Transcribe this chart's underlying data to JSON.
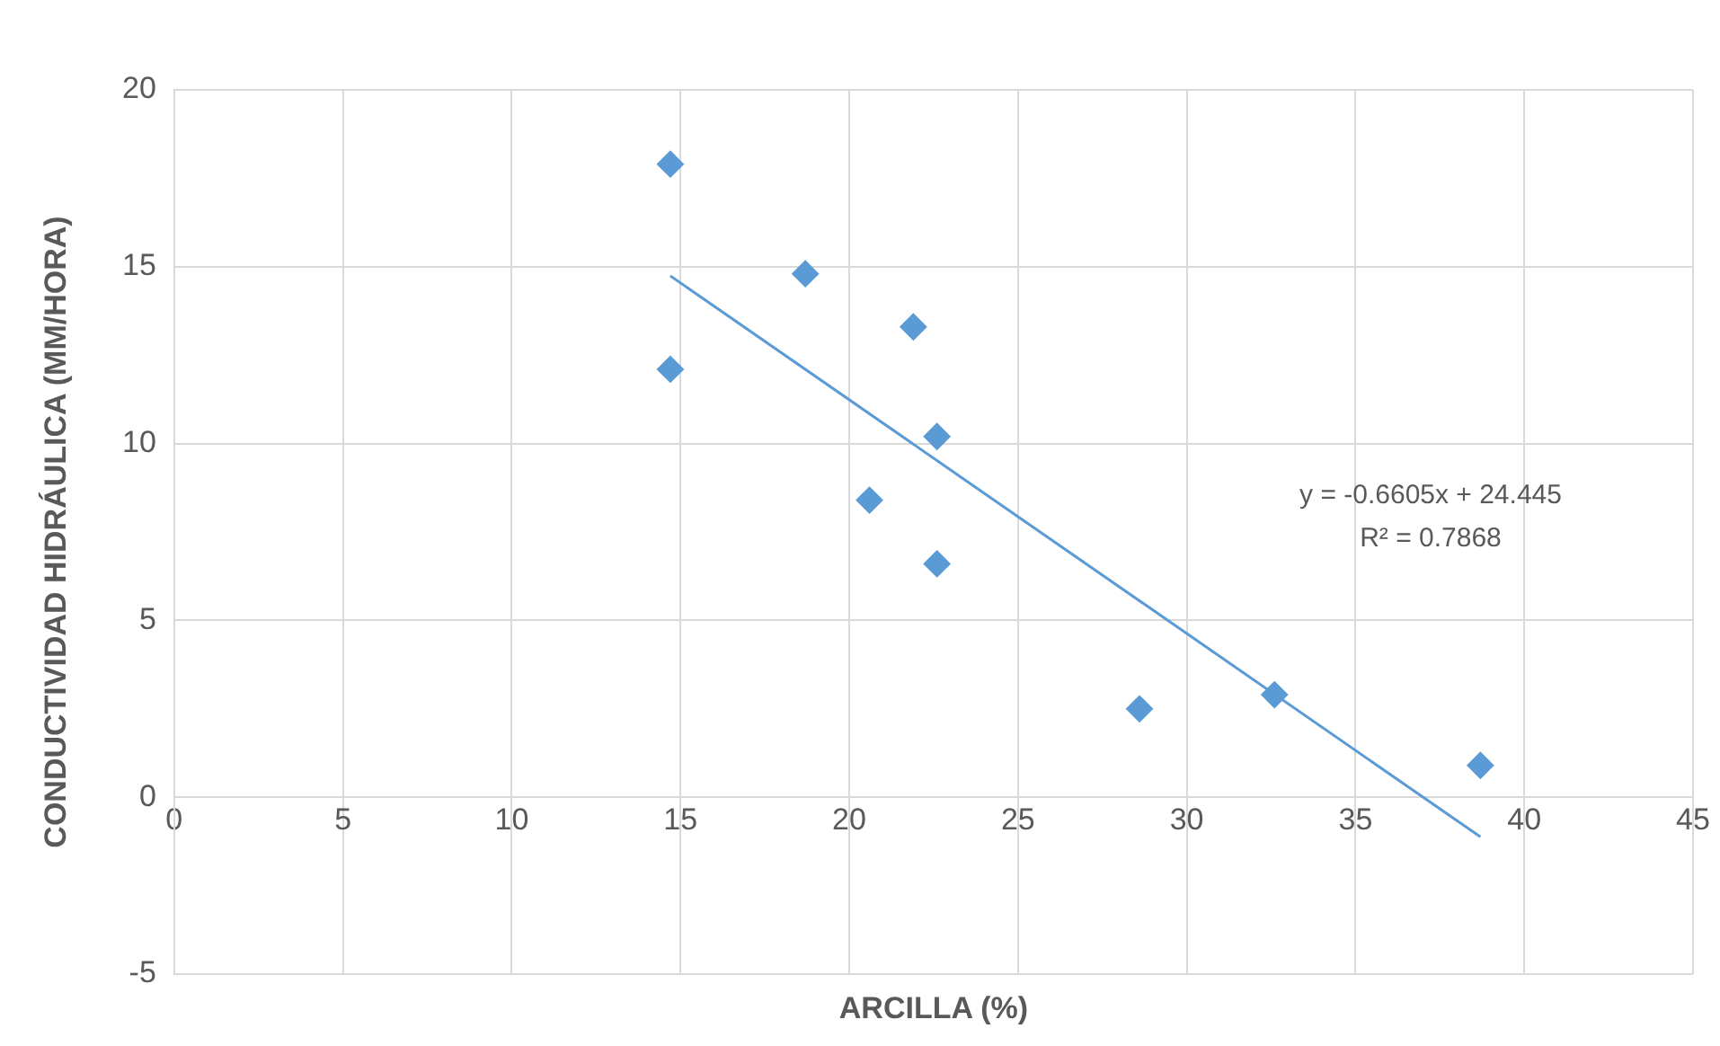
{
  "chart_data": {
    "type": "scatter",
    "xlabel": "ARCILLA (%)",
    "ylabel": "CONDUCTIVIDAD HIDRÁULICA (MM/HORA)",
    "x": [
      14.7,
      14.7,
      18.7,
      21.9,
      22.6,
      20.6,
      22.6,
      28.6,
      32.6,
      38.7
    ],
    "series": [
      {
        "color": "#5b9bd5",
        "values": [
          17.9,
          12.1,
          14.8,
          13.3,
          10.2,
          8.4,
          6.6,
          2.5,
          2.9,
          0.9
        ]
      },
      {
        "type": "line",
        "color": "#5b9bd5",
        "marker": "none",
        "x": [
          14.7,
          38.7
        ],
        "values": [
          14.74,
          -1.12
        ]
      }
    ],
    "annotations": [
      "y = -0.6605x + 24.445",
      "R² = 0.7868"
    ],
    "xlim": [
      0,
      45
    ],
    "xticks": [
      0,
      5,
      10,
      15,
      20,
      25,
      30,
      35,
      40,
      45
    ],
    "ylim": [
      -5,
      20
    ],
    "yticks": [
      -5,
      0,
      5,
      10,
      15,
      20
    ],
    "grid": true,
    "marker": "diamond",
    "legend": false
  }
}
